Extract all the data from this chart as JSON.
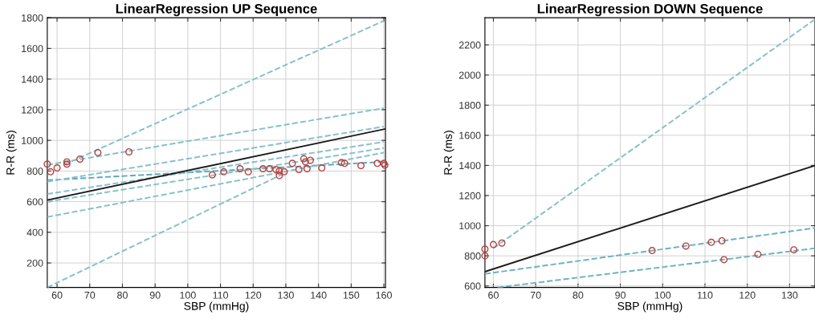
{
  "chart_data": [
    {
      "type": "scatter",
      "title": "LinearRegression UP Sequence",
      "xlabel": "SBP (mmHg)",
      "ylabel": "R-R (ms)",
      "xlim": [
        57,
        160.5
      ],
      "ylim": [
        40,
        1800
      ],
      "xticks": [
        60,
        70,
        80,
        90,
        100,
        110,
        120,
        130,
        140,
        150,
        160
      ],
      "yticks": [
        200,
        400,
        600,
        800,
        1000,
        1200,
        1400,
        1600,
        1800
      ],
      "grid": true,
      "series": [
        {
          "type": "line",
          "x": [
            62,
            160
          ],
          "values": [
            840,
            1780
          ],
          "color": "#86bfcc",
          "line_style": "dashed",
          "marker": "none"
        },
        {
          "type": "line",
          "x": [
            57,
            160
          ],
          "values": [
            840,
            1210
          ],
          "color": "#86bfcc",
          "line_style": "dashed",
          "marker": "none"
        },
        {
          "type": "line",
          "x": [
            57,
            160
          ],
          "values": [
            740,
            860
          ],
          "color": "#5fa8b8",
          "line_style": "dashed",
          "marker": "none"
        },
        {
          "type": "line",
          "x": [
            57,
            160
          ],
          "values": [
            730,
            1090
          ],
          "color": "#86bfcc",
          "line_style": "dashed",
          "marker": "none"
        },
        {
          "type": "line",
          "x": [
            57,
            160
          ],
          "values": [
            650,
            990
          ],
          "color": "#86bfcc",
          "line_style": "dashed",
          "marker": "none"
        },
        {
          "type": "line",
          "x": [
            57,
            160
          ],
          "values": [
            600,
            950
          ],
          "color": "#86bfcc",
          "line_style": "dashed",
          "marker": "none"
        },
        {
          "type": "line",
          "x": [
            57,
            160
          ],
          "values": [
            500,
            920
          ],
          "color": "#86bfcc",
          "line_style": "dashed",
          "marker": "none"
        },
        {
          "type": "line",
          "x": [
            57,
            130
          ],
          "values": [
            40,
            790
          ],
          "color": "#86bfcc",
          "line_style": "dashed",
          "marker": "none"
        },
        {
          "type": "line",
          "x": [
            57,
            160.5
          ],
          "values": [
            610,
            1075
          ],
          "color": "#1a1a1a",
          "line_style": "solid",
          "marker": "none"
        },
        {
          "x": [
            57,
            58,
            60,
            63,
            63,
            67,
            72.5,
            82,
            107.5,
            111,
            116,
            118.5,
            123,
            125,
            127,
            128,
            128,
            129.5,
            132,
            134,
            135.5,
            136,
            136.5,
            137.5,
            141,
            147,
            148,
            153,
            158,
            160,
            160.3
          ],
          "values": [
            845,
            795,
            820,
            860,
            845,
            878,
            920,
            925,
            775,
            795,
            815,
            795,
            815,
            815,
            810,
            800,
            770,
            795,
            850,
            810,
            880,
            860,
            815,
            870,
            820,
            855,
            850,
            835,
            850,
            850,
            838
          ],
          "color": "#b5423f",
          "marker": "circle"
        }
      ]
    },
    {
      "type": "scatter",
      "title": "LinearRegression DOWN Sequence",
      "xlabel": "SBP (mmHg)",
      "ylabel": "R-R (ms)",
      "xlim": [
        58,
        136
      ],
      "ylim": [
        590,
        2380
      ],
      "xticks": [
        60,
        70,
        80,
        90,
        100,
        110,
        120,
        130
      ],
      "yticks": [
        600,
        800,
        1000,
        1200,
        1400,
        1600,
        1800,
        2000,
        2200
      ],
      "grid": true,
      "series": [
        {
          "type": "line",
          "x": [
            60,
            136
          ],
          "values": [
            850,
            2370
          ],
          "color": "#86bfcc",
          "line_style": "dashed",
          "marker": "none"
        },
        {
          "type": "line",
          "x": [
            58,
            136
          ],
          "values": [
            680,
            985
          ],
          "color": "#6fb0bf",
          "line_style": "dashed",
          "marker": "none"
        },
        {
          "type": "line",
          "x": [
            61,
            136
          ],
          "values": [
            590,
            850
          ],
          "color": "#6fb0bf",
          "line_style": "dashed",
          "marker": "none"
        },
        {
          "type": "line",
          "x": [
            58,
            136
          ],
          "values": [
            695,
            1400
          ],
          "color": "#1a1a1a",
          "line_style": "solid",
          "marker": "none"
        },
        {
          "x": [
            58,
            58,
            60,
            62,
            97.5,
            105.5,
            111.5,
            114,
            114.5,
            122.5,
            131
          ],
          "values": [
            845,
            800,
            875,
            885,
            835,
            865,
            890,
            900,
            775,
            810,
            840
          ],
          "color": "#b5423f",
          "marker": "circle"
        }
      ]
    }
  ]
}
